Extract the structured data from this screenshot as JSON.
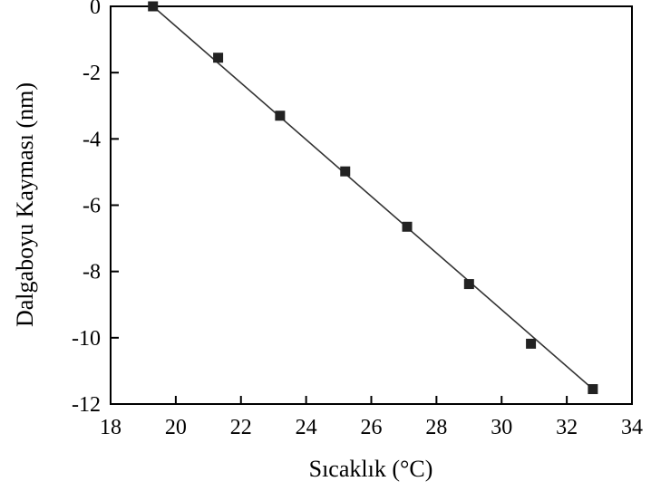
{
  "chart_data": {
    "type": "scatter",
    "xlabel": "Sıcaklık (°C)",
    "ylabel": "Dalgaboyu Kayması (nm)",
    "xlim": [
      18,
      34
    ],
    "ylim": [
      -12,
      0
    ],
    "xticks": [
      18,
      20,
      22,
      24,
      26,
      28,
      30,
      32,
      34
    ],
    "yticks": [
      0,
      -2,
      -4,
      -6,
      -8,
      -10,
      -12
    ],
    "xtick_labels": [
      "18",
      "20",
      "22",
      "24",
      "26",
      "28",
      "30",
      "32",
      "34"
    ],
    "ytick_labels": [
      "0",
      "-2",
      "-4",
      "-6",
      "-8",
      "-10",
      "-12"
    ],
    "grid": false,
    "series": [
      {
        "points": [
          {
            "x": 19.3,
            "y": 0.0
          },
          {
            "x": 21.3,
            "y": -1.55
          },
          {
            "x": 23.2,
            "y": -3.3
          },
          {
            "x": 25.2,
            "y": -4.98
          },
          {
            "x": 27.1,
            "y": -6.65
          },
          {
            "x": 29.0,
            "y": -8.38
          },
          {
            "x": 30.9,
            "y": -10.18
          },
          {
            "x": 32.8,
            "y": -11.55
          }
        ],
        "marker": "square",
        "color": "#222222"
      }
    ],
    "fit_line": {
      "start": {
        "x": 19.3,
        "y": 0.0
      },
      "end": {
        "x": 32.8,
        "y": -11.55
      },
      "color": "#333333"
    }
  }
}
